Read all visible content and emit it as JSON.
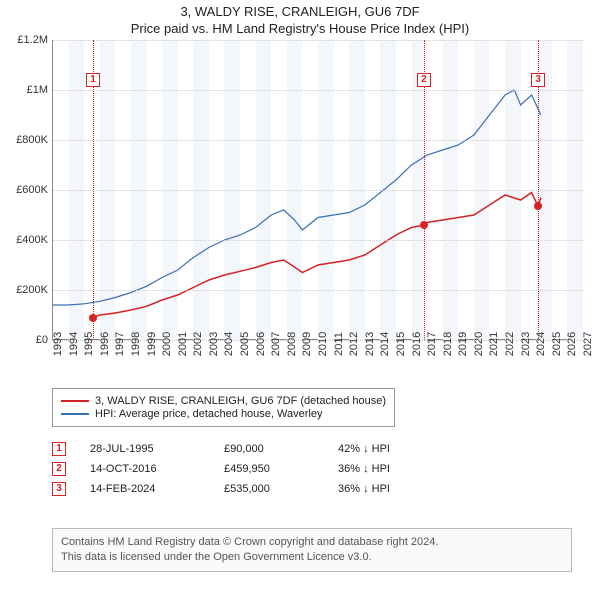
{
  "title_line1": "3, WALDY RISE, CRANLEIGH, GU6 7DF",
  "title_line2": "Price paid vs. HM Land Registry's House Price Index (HPI)",
  "chart": {
    "type": "line",
    "x_years": [
      1993,
      1994,
      1995,
      1996,
      1997,
      1998,
      1999,
      2000,
      2001,
      2002,
      2003,
      2004,
      2005,
      2006,
      2007,
      2008,
      2009,
      2010,
      2011,
      2012,
      2013,
      2014,
      2015,
      2016,
      2017,
      2018,
      2019,
      2020,
      2021,
      2022,
      2023,
      2024,
      2025,
      2026,
      2027
    ],
    "x_range": [
      1993,
      2027
    ],
    "band_every_other_year": true,
    "band_color": "#f3f6fb",
    "y_range": [
      0,
      1200000
    ],
    "y_ticks": [
      0,
      200000,
      400000,
      600000,
      800000,
      1000000,
      1200000
    ],
    "y_tick_labels": [
      "£0",
      "£200K",
      "£400K",
      "£600K",
      "£800K",
      "£1M",
      "£1.2M"
    ],
    "grid_color": "#ccc",
    "background_color": "#ffffff",
    "series": {
      "property": {
        "label": "3, WALDY RISE, CRANLEIGH, GU6 7DF (detached house)",
        "color": "#d62222",
        "line_width": 1.5,
        "points": [
          [
            1995.57,
            90000
          ],
          [
            1996,
            100000
          ],
          [
            1997,
            108000
          ],
          [
            1998,
            120000
          ],
          [
            1999,
            135000
          ],
          [
            2000,
            160000
          ],
          [
            2001,
            180000
          ],
          [
            2002,
            210000
          ],
          [
            2003,
            240000
          ],
          [
            2004,
            260000
          ],
          [
            2005,
            275000
          ],
          [
            2006,
            290000
          ],
          [
            2007,
            310000
          ],
          [
            2007.8,
            320000
          ],
          [
            2008.3,
            300000
          ],
          [
            2009,
            270000
          ],
          [
            2010,
            300000
          ],
          [
            2011,
            310000
          ],
          [
            2012,
            320000
          ],
          [
            2013,
            340000
          ],
          [
            2014,
            380000
          ],
          [
            2015,
            420000
          ],
          [
            2016,
            450000
          ],
          [
            2016.79,
            459950
          ],
          [
            2017,
            470000
          ],
          [
            2018,
            480000
          ],
          [
            2019,
            490000
          ],
          [
            2020,
            500000
          ],
          [
            2021,
            540000
          ],
          [
            2022,
            580000
          ],
          [
            2023,
            560000
          ],
          [
            2023.7,
            590000
          ],
          [
            2024.12,
            535000
          ],
          [
            2024.3,
            570000
          ]
        ]
      },
      "hpi": {
        "label": "HPI: Average price, detached house, Waverley",
        "color": "#3a6fb7",
        "line_width": 1.2,
        "points": [
          [
            1993,
            140000
          ],
          [
            1994,
            140000
          ],
          [
            1995,
            145000
          ],
          [
            1996,
            155000
          ],
          [
            1997,
            170000
          ],
          [
            1998,
            190000
          ],
          [
            1999,
            215000
          ],
          [
            2000,
            250000
          ],
          [
            2001,
            280000
          ],
          [
            2002,
            330000
          ],
          [
            2003,
            370000
          ],
          [
            2004,
            400000
          ],
          [
            2005,
            420000
          ],
          [
            2006,
            450000
          ],
          [
            2007,
            500000
          ],
          [
            2007.8,
            520000
          ],
          [
            2008.5,
            480000
          ],
          [
            2009,
            440000
          ],
          [
            2010,
            490000
          ],
          [
            2011,
            500000
          ],
          [
            2012,
            510000
          ],
          [
            2013,
            540000
          ],
          [
            2014,
            590000
          ],
          [
            2015,
            640000
          ],
          [
            2016,
            700000
          ],
          [
            2017,
            740000
          ],
          [
            2018,
            760000
          ],
          [
            2019,
            780000
          ],
          [
            2020,
            820000
          ],
          [
            2021,
            900000
          ],
          [
            2022,
            980000
          ],
          [
            2022.6,
            1000000
          ],
          [
            2023,
            940000
          ],
          [
            2023.7,
            980000
          ],
          [
            2024.3,
            900000
          ]
        ]
      }
    },
    "event_markers": [
      {
        "n": "1",
        "year": 1995.57,
        "marker_y": 1070000
      },
      {
        "n": "2",
        "year": 2016.79,
        "marker_y": 1070000
      },
      {
        "n": "3",
        "year": 2024.12,
        "marker_y": 1070000
      }
    ],
    "sale_dots": [
      {
        "year": 1995.57,
        "value": 90000
      },
      {
        "year": 2016.79,
        "value": 459950
      },
      {
        "year": 2024.12,
        "value": 535000
      }
    ],
    "event_vline_color": "#d62222"
  },
  "legend": {
    "items": [
      {
        "color": "#d62222",
        "label_path": "chart.series.property.label"
      },
      {
        "color": "#3a6fb7",
        "label_path": "chart.series.hpi.label"
      }
    ]
  },
  "events_table": [
    {
      "n": "1",
      "date": "28-JUL-1995",
      "price": "£90,000",
      "delta": "42% ↓ HPI"
    },
    {
      "n": "2",
      "date": "14-OCT-2016",
      "price": "£459,950",
      "delta": "36% ↓ HPI"
    },
    {
      "n": "3",
      "date": "14-FEB-2024",
      "price": "£535,000",
      "delta": "36% ↓ HPI"
    }
  ],
  "footer_line1": "Contains HM Land Registry data © Crown copyright and database right 2024.",
  "footer_line2": "This data is licensed under the Open Government Licence v3.0."
}
